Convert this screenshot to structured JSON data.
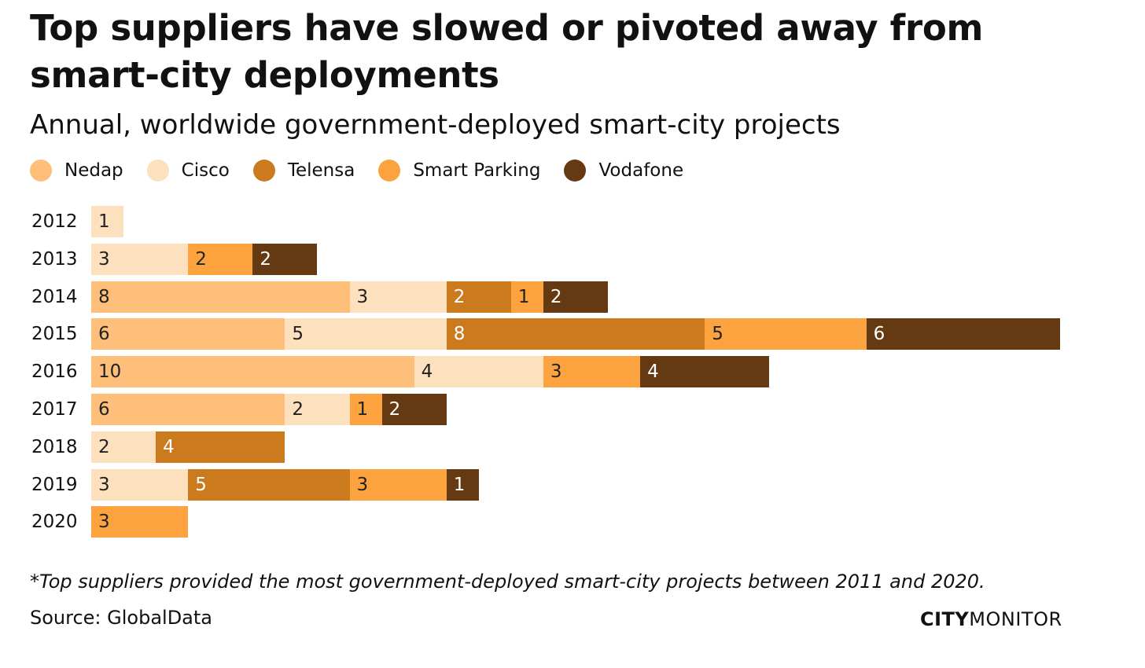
{
  "chart_data": {
    "type": "bar",
    "orientation": "horizontal-stacked",
    "title": "Top suppliers have slowed or pivoted away from smart-city deployments",
    "subtitle": "Annual, worldwide government-deployed smart-city projects",
    "categories": [
      "2012",
      "2013",
      "2014",
      "2015",
      "2016",
      "2017",
      "2018",
      "2019",
      "2020"
    ],
    "series": [
      {
        "name": "Nedap",
        "color": "#fdbf7a",
        "text": "#222",
        "values": [
          0,
          0,
          8,
          6,
          10,
          6,
          0,
          0,
          0
        ]
      },
      {
        "name": "Cisco",
        "color": "#fde0bd",
        "text": "#222",
        "values": [
          1,
          3,
          3,
          5,
          4,
          2,
          2,
          3,
          0
        ]
      },
      {
        "name": "Telensa",
        "color": "#cc7a1e",
        "text": "#fff",
        "values": [
          0,
          0,
          2,
          8,
          0,
          0,
          4,
          5,
          0
        ]
      },
      {
        "name": "Smart Parking",
        "color": "#fca33f",
        "text": "#222",
        "values": [
          0,
          2,
          1,
          5,
          3,
          1,
          0,
          3,
          3
        ]
      },
      {
        "name": "Vodafone",
        "color": "#653a12",
        "text": "#fff",
        "values": [
          0,
          2,
          2,
          6,
          4,
          2,
          0,
          1,
          0
        ]
      }
    ],
    "xlim": [
      0,
      30
    ],
    "legend": "top-left",
    "grid": false
  },
  "footnote": "*Top suppliers provided the most government-deployed smart-city projects between 2011 and 2020.",
  "source": "Source: GlobalData",
  "logo": {
    "bold": "CITY",
    "light": "MONITOR"
  }
}
